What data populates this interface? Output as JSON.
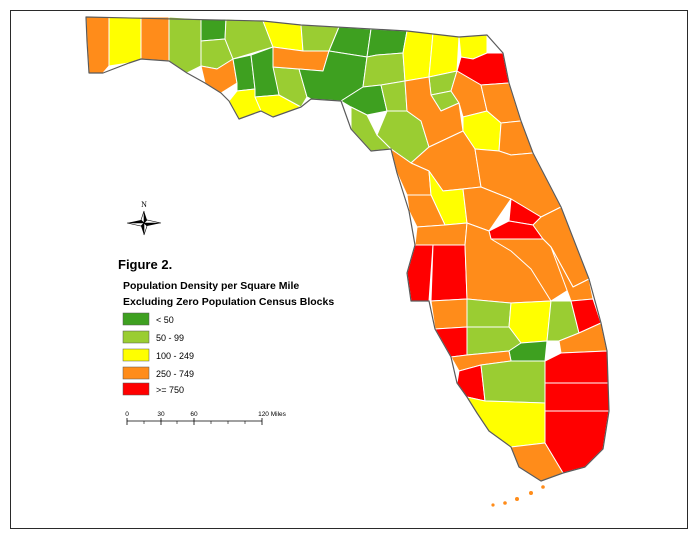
{
  "figure": {
    "title": "Figure 2.",
    "legend_title_line1": "Population Density per Square Mile",
    "legend_title_line2": "Excluding Zero Population Census Blocks"
  },
  "legend": [
    {
      "label": "< 50",
      "color": "#3ea020"
    },
    {
      "label": "50 - 99",
      "color": "#9acd32"
    },
    {
      "label": "100 - 249",
      "color": "#ffff00"
    },
    {
      "label": "250 - 749",
      "color": "#ff8c1a"
    },
    {
      "label": ">= 750",
      "color": "#ff0000"
    }
  ],
  "north_arrow": {
    "label": "N",
    "icon": "compass-rose-icon"
  },
  "scale_bar": {
    "ticks": [
      "0",
      "30",
      "60",
      "120 Miles"
    ]
  },
  "map_colors": {
    "low": "#3ea020",
    "medium_low": "#9acd32",
    "medium": "#ffff00",
    "medium_high": "#ff8c1a",
    "high": "#ff0000"
  }
}
